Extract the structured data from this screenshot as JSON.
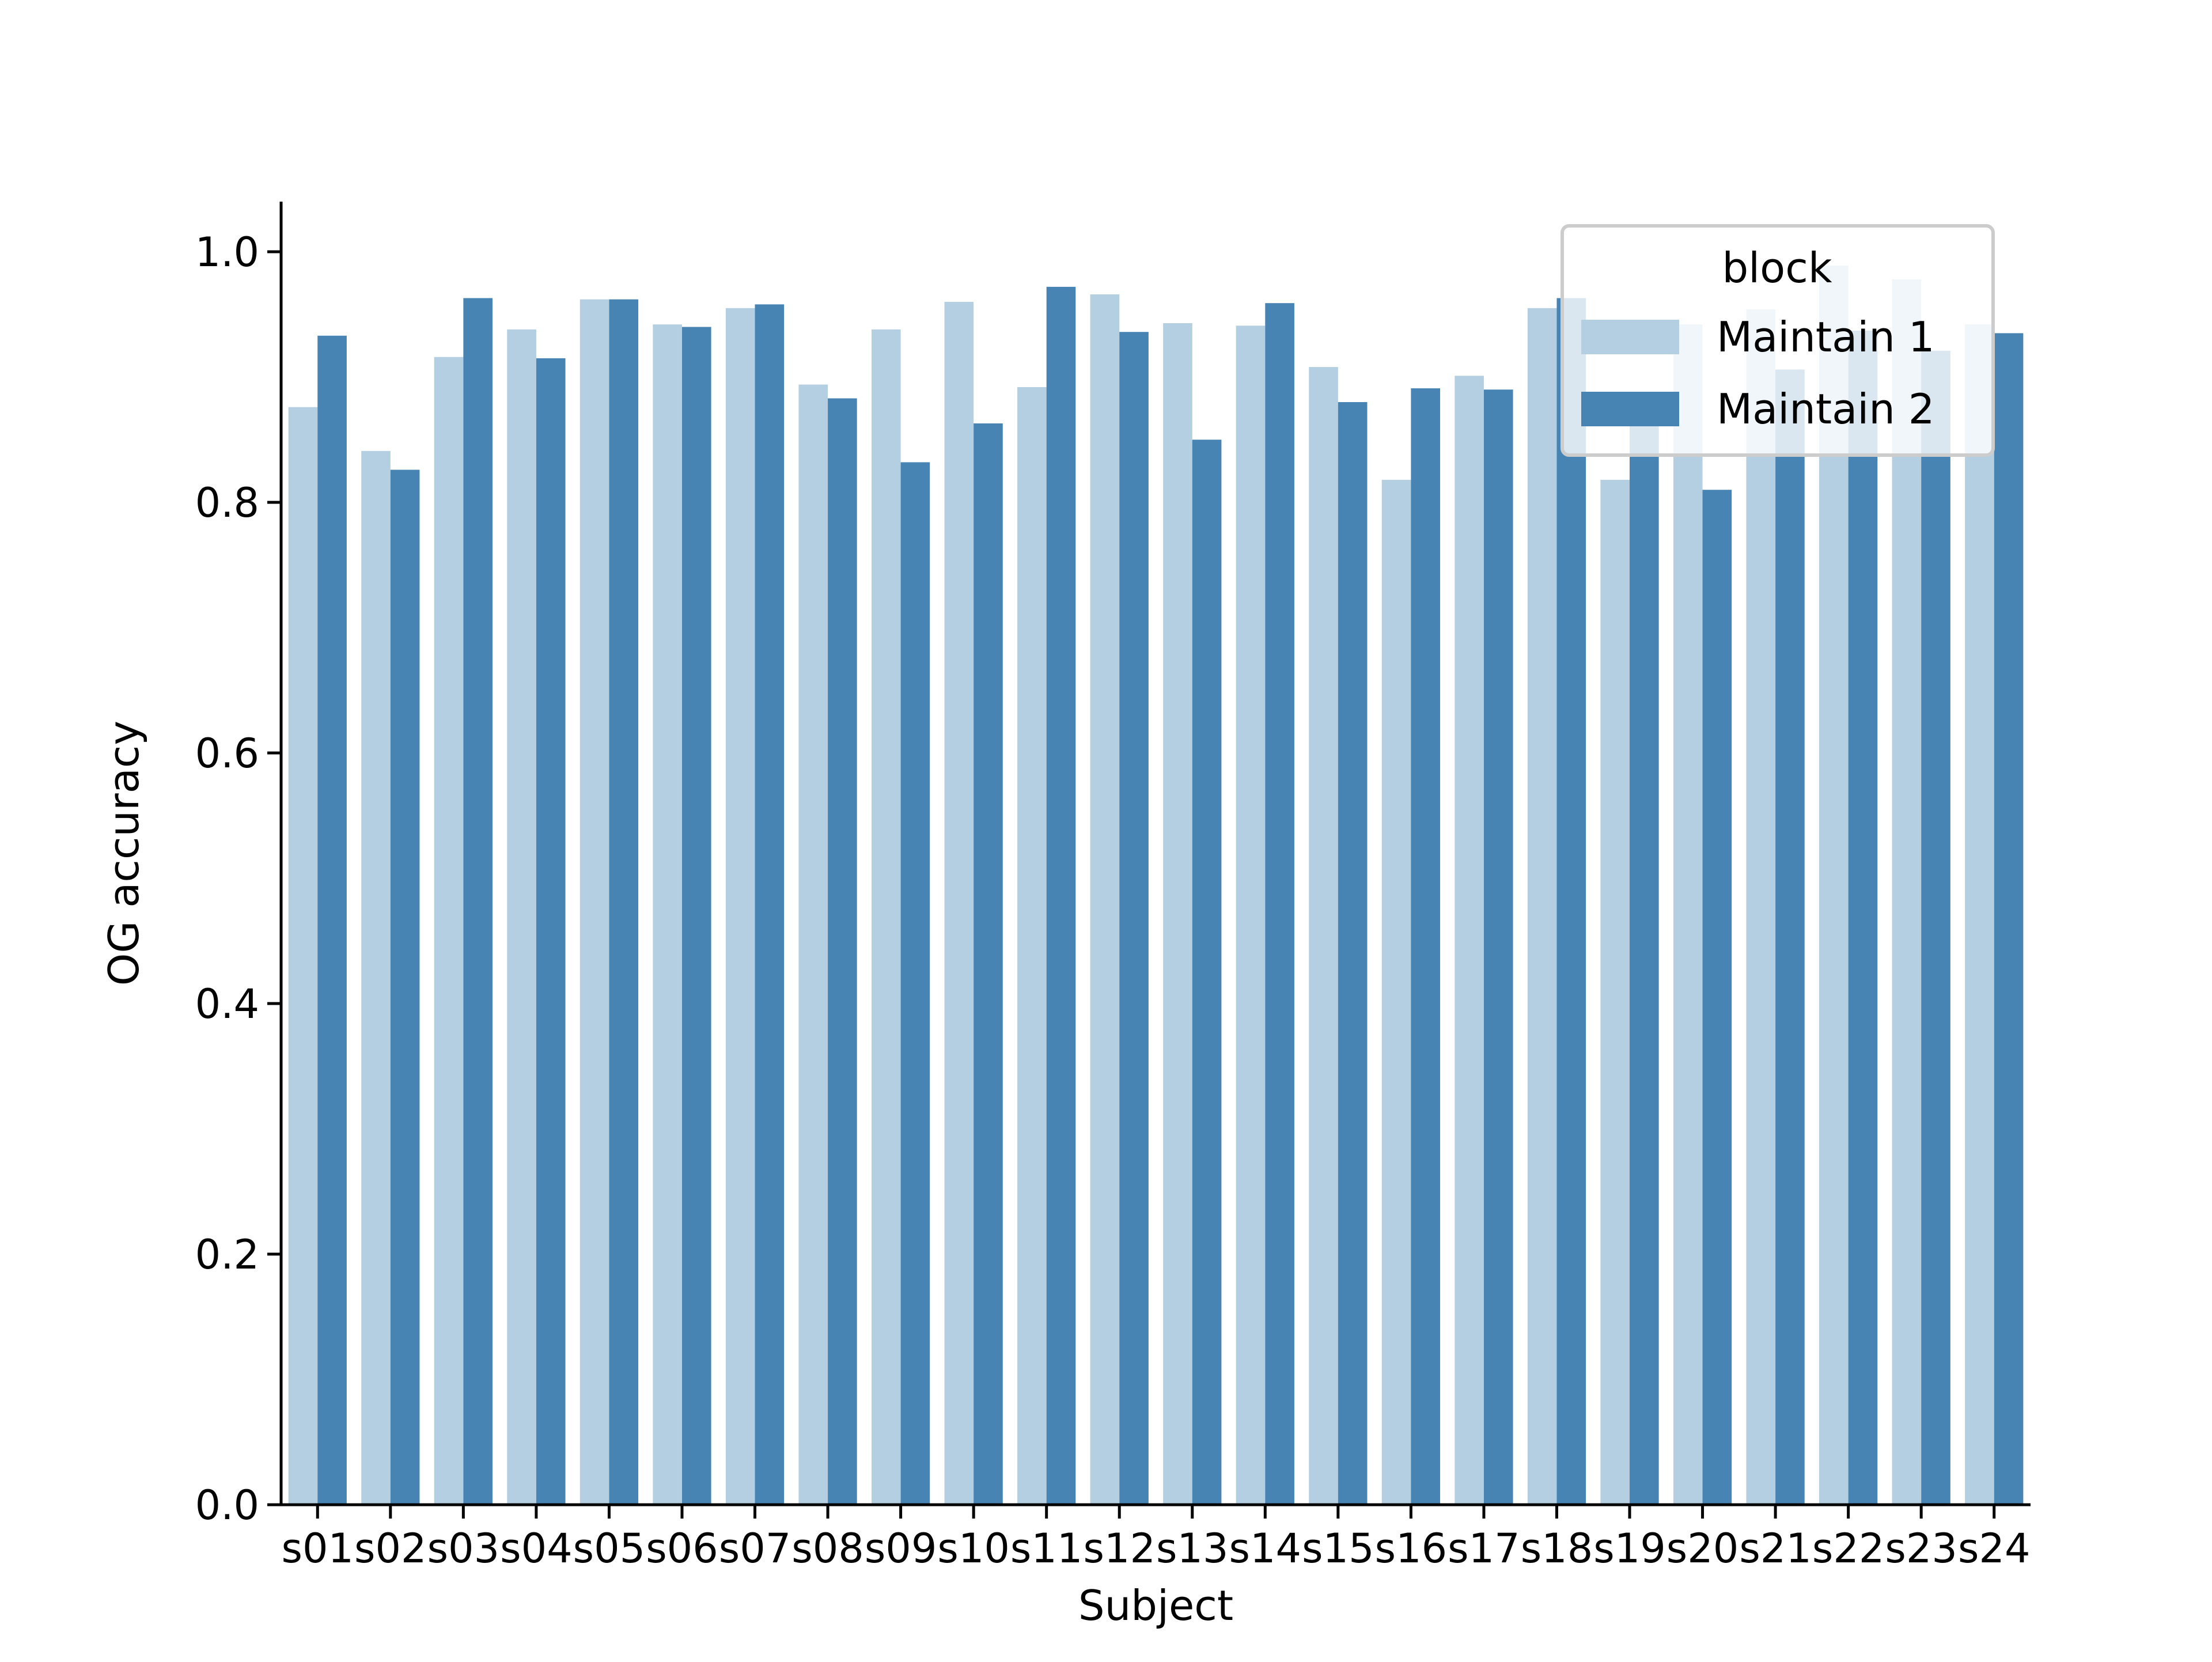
{
  "chart_data": {
    "type": "bar",
    "title": "",
    "xlabel": "Subject",
    "ylabel": "OG accuracy",
    "ylim": [
      0.0,
      1.04
    ],
    "yticks": [
      0.0,
      0.2,
      0.4,
      0.6,
      0.8,
      1.0
    ],
    "ytick_labels": [
      "0.0",
      "0.2",
      "0.4",
      "0.6",
      "0.8",
      "1.0"
    ],
    "grid": false,
    "categories": [
      "s01",
      "s02",
      "s03",
      "s04",
      "s05",
      "s06",
      "s07",
      "s08",
      "s09",
      "s10",
      "s11",
      "s12",
      "s13",
      "s14",
      "s15",
      "s16",
      "s17",
      "s18",
      "s19",
      "s20",
      "s21",
      "s22",
      "s23",
      "s24"
    ],
    "legend": {
      "title": "block",
      "placement": "top-right"
    },
    "series": [
      {
        "name": "Maintain 1",
        "color": "#b3cfe1",
        "values": [
          0.876,
          0.841,
          0.916,
          0.938,
          0.962,
          0.942,
          0.955,
          0.894,
          0.938,
          0.96,
          0.892,
          0.966,
          0.943,
          0.941,
          0.908,
          0.818,
          0.901,
          0.955,
          0.818,
          0.942,
          0.954,
          0.989,
          0.978,
          0.942
        ]
      },
      {
        "name": "Maintain 2",
        "color": "#4783b3",
        "values": [
          0.933,
          0.826,
          0.963,
          0.915,
          0.962,
          0.94,
          0.958,
          0.883,
          0.832,
          0.863,
          0.972,
          0.936,
          0.85,
          0.959,
          0.88,
          0.891,
          0.89,
          0.963,
          0.883,
          0.81,
          0.906,
          0.937,
          0.921,
          0.935
        ]
      }
    ]
  }
}
